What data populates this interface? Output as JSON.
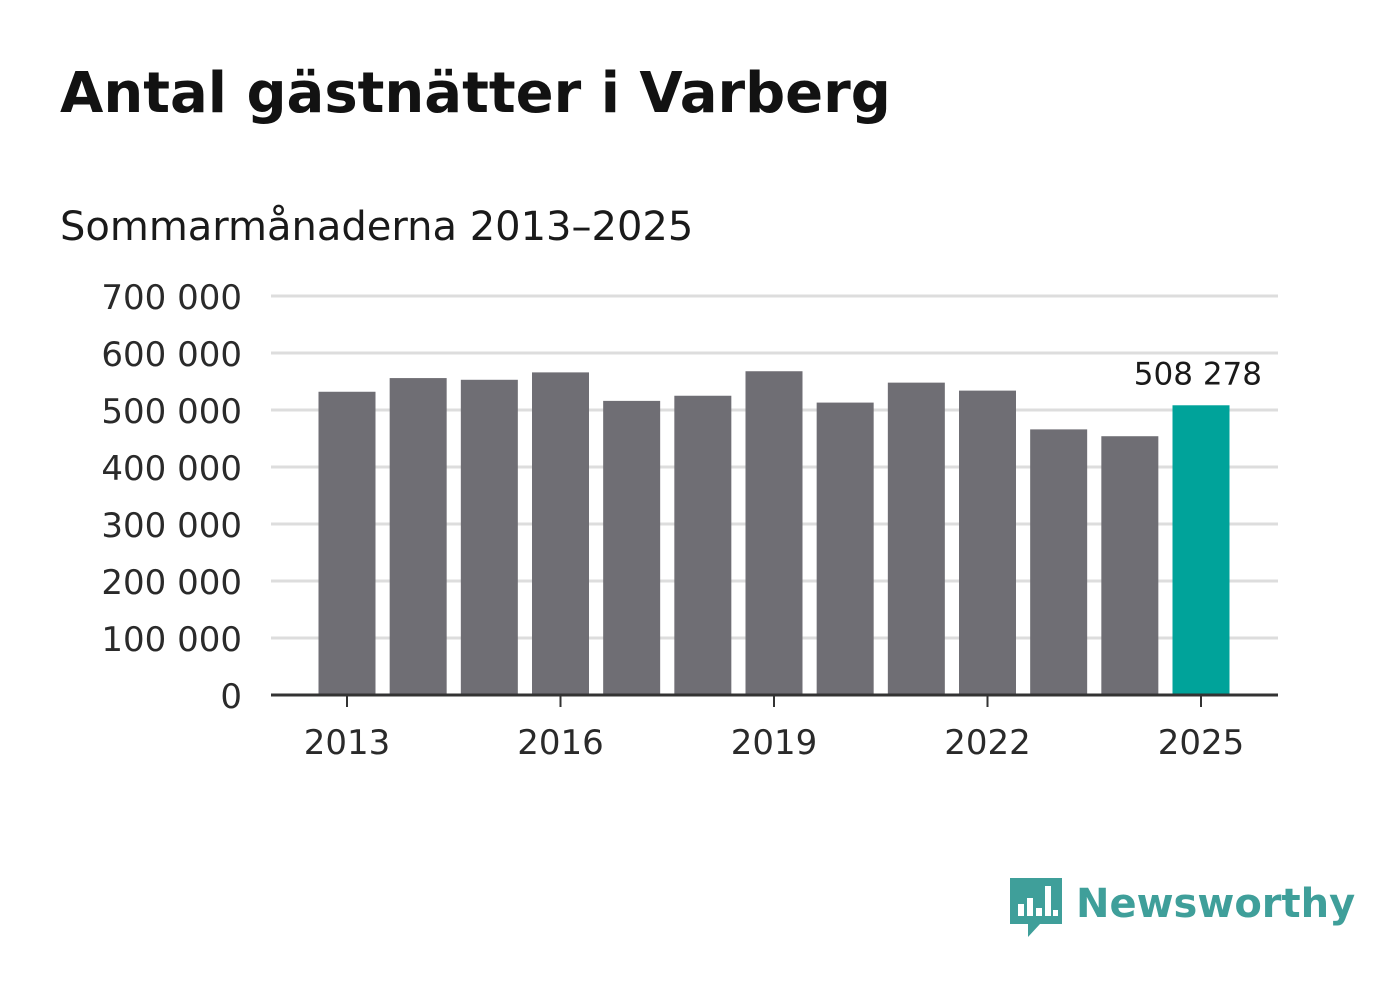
{
  "title": "Antal gästnätter i Varberg",
  "subtitle": "Sommarmånaderna 2013–2025",
  "brand": {
    "name": "Newsworthy",
    "icon": "bar-chart-speech-bubble-icon",
    "color": "#3f9f9a"
  },
  "colors": {
    "bar": "#6f6e74",
    "highlight": "#00a39a",
    "grid": "#dddddd",
    "axis": "#333333",
    "text": "#1a1a1a"
  },
  "chart_data": {
    "type": "bar",
    "categories": [
      "2013",
      "2014",
      "2015",
      "2016",
      "2017",
      "2018",
      "2019",
      "2020",
      "2021",
      "2022",
      "2023",
      "2024",
      "2025"
    ],
    "values": [
      532000,
      556000,
      553000,
      566000,
      516000,
      525000,
      568000,
      513000,
      548000,
      534000,
      466000,
      454000,
      508278
    ],
    "highlight_index": 12,
    "highlight_label": "508 278",
    "x_tick_labels": [
      "2013",
      "2016",
      "2019",
      "2022",
      "2025"
    ],
    "y_ticks": [
      0,
      100000,
      200000,
      300000,
      400000,
      500000,
      600000,
      700000
    ],
    "y_tick_labels": [
      "0",
      "100 000",
      "200 000",
      "300 000",
      "400 000",
      "500 000",
      "600 000",
      "700 000"
    ],
    "ylim": [
      0,
      700000
    ],
    "grid": true,
    "legend": "none"
  }
}
